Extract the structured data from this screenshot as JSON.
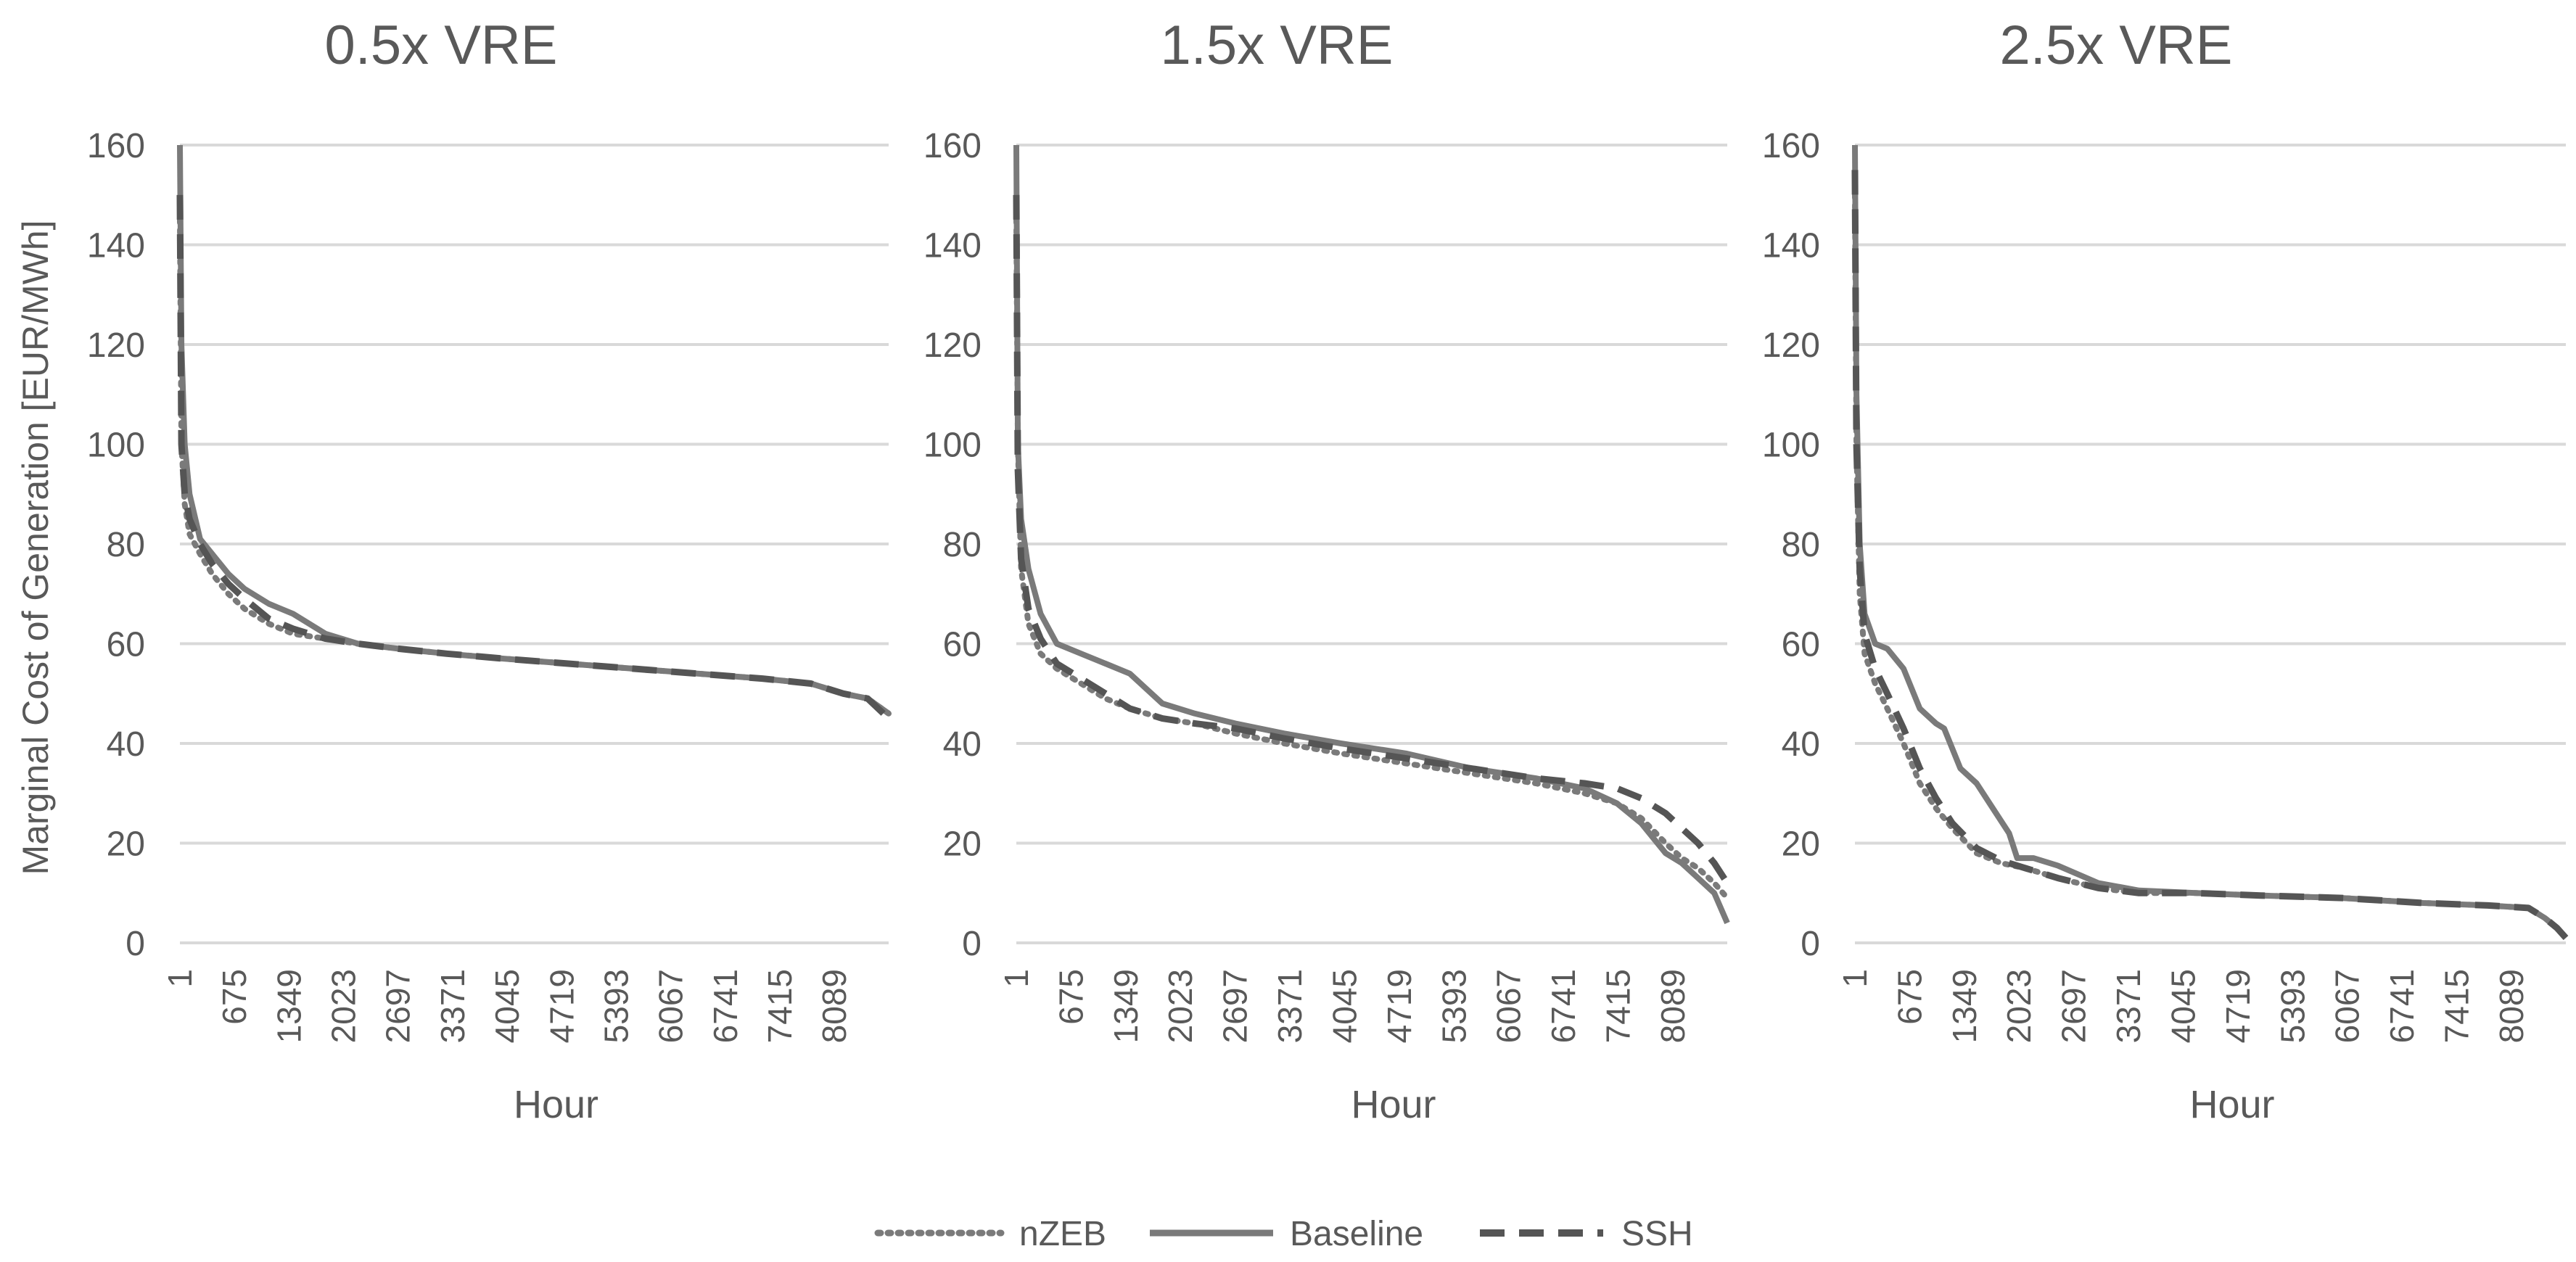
{
  "chart_data": {
    "type": "line",
    "shared": {
      "ylabel": "Marginal Cost of Generation [EUR/MWh]",
      "xlabel": "Hour",
      "ylim": [
        0,
        160
      ],
      "yticks": [
        0,
        20,
        40,
        60,
        80,
        100,
        120,
        140,
        160
      ],
      "xlim": [
        1,
        8760
      ],
      "xticks": [
        1,
        675,
        1349,
        2023,
        2697,
        3371,
        4045,
        4719,
        5393,
        6067,
        6741,
        7415,
        8089
      ],
      "grid": "horizontal",
      "legend_position": "bottom-center",
      "series_styles": {
        "nZEB": {
          "dash": "dotted",
          "color": "#7a7a7a"
        },
        "Baseline": {
          "dash": "solid",
          "color": "#7a7a7a"
        },
        "SSH": {
          "dash": "dashed",
          "color": "#7a7a7a"
        }
      }
    },
    "panels": [
      {
        "title": "0.5x VRE",
        "series": [
          {
            "name": "nZEB",
            "x": [
              1,
              20,
              60,
              120,
              250,
              400,
              600,
              800,
              1100,
              1400,
              1800,
              2200,
              2700,
              3300,
              4000,
              4800,
              5600,
              6400,
              7200,
              7800,
              8200,
              8500,
              8760
            ],
            "y": [
              145,
              100,
              88,
              82,
              78,
              74,
              70,
              67,
              64,
              62,
              61,
              60,
              59,
              58,
              57,
              56,
              55,
              54,
              53,
              52,
              50,
              49,
              46
            ]
          },
          {
            "name": "Baseline",
            "x": [
              1,
              20,
              60,
              120,
              250,
              400,
              600,
              800,
              1100,
              1400,
              1800,
              2200,
              2700,
              3300,
              4000,
              4800,
              5600,
              6400,
              7200,
              7800,
              8200,
              8500,
              8760
            ],
            "y": [
              160,
              120,
              100,
              90,
              81,
              78,
              74,
              71,
              68,
              66,
              62,
              60,
              59,
              58,
              57,
              56,
              55,
              54,
              53,
              52,
              50,
              49,
              46
            ]
          },
          {
            "name": "SSH",
            "x": [
              1,
              20,
              60,
              120,
              250,
              400,
              600,
              800,
              1100,
              1400,
              1800,
              2200,
              2700,
              3300,
              4000,
              4800,
              5600,
              6400,
              7200,
              7800,
              8200,
              8500,
              8760
            ],
            "y": [
              150,
              100,
              90,
              85,
              80,
              76,
              72,
              69,
              65,
              63,
              61,
              60,
              59,
              58,
              57,
              56,
              55,
              54,
              53,
              52,
              50,
              49,
              45
            ]
          }
        ]
      },
      {
        "title": "1.5x VRE",
        "series": [
          {
            "name": "nZEB",
            "x": [
              1,
              20,
              60,
              150,
              300,
              500,
              800,
              1100,
              1400,
              1800,
              2200,
              2700,
              3300,
              4000,
              4800,
              5600,
              6400,
              7000,
              7400,
              7700,
              8000,
              8200,
              8400,
              8600,
              8760
            ],
            "y": [
              145,
              100,
              75,
              64,
              58,
              55,
              52,
              49,
              47,
              45,
              44,
              42,
              40,
              38,
              36,
              34,
              32,
              30,
              28,
              25,
              20,
              17,
              15,
              12,
              9
            ]
          },
          {
            "name": "Baseline",
            "x": [
              1,
              20,
              60,
              150,
              300,
              500,
              800,
              1100,
              1400,
              1600,
              1800,
              2200,
              2700,
              3300,
              4000,
              4800,
              5600,
              6400,
              7000,
              7400,
              7700,
              8000,
              8200,
              8400,
              8600,
              8760
            ],
            "y": [
              160,
              100,
              85,
              75,
              66,
              60,
              58,
              56,
              54,
              51,
              48,
              46,
              44,
              42,
              40,
              38,
              35,
              33,
              31,
              28,
              24,
              18,
              16,
              13,
              10,
              4
            ]
          },
          {
            "name": "SSH",
            "x": [
              1,
              20,
              60,
              150,
              300,
              500,
              800,
              1100,
              1400,
              1800,
              2200,
              2700,
              3300,
              4000,
              4800,
              5600,
              6400,
              7000,
              7400,
              7700,
              8000,
              8200,
              8400,
              8600,
              8760
            ],
            "y": [
              150,
              95,
              77,
              67,
              61,
              56,
              53,
              50,
              47,
              45,
              44,
              43,
              41,
              39,
              37,
              35,
              33,
              32,
              31,
              29,
              26,
              23,
              20,
              16,
              12
            ]
          }
        ]
      },
      {
        "title": "2.5x VRE",
        "series": [
          {
            "name": "nZEB",
            "x": [
              1,
              20,
              60,
              120,
              250,
              400,
              600,
              800,
              1000,
              1200,
              1500,
              1800,
              2100,
              2500,
              3000,
              3500,
              4200,
              5000,
              6000,
              7000,
              7800,
              8300,
              8500,
              8650,
              8760
            ],
            "y": [
              150,
              100,
              70,
              58,
              52,
              47,
              40,
              32,
              27,
              23,
              18,
              16,
              15,
              13,
              11,
              10,
              10,
              9.5,
              9,
              8,
              7.5,
              7,
              5,
              3,
              1
            ]
          },
          {
            "name": "Baseline",
            "x": [
              1,
              20,
              60,
              120,
              250,
              400,
              600,
              800,
              1000,
              1100,
              1300,
              1500,
              1700,
              1900,
              2000,
              2200,
              2500,
              3000,
              3500,
              4200,
              5000,
              6000,
              7000,
              7800,
              8300,
              8500,
              8650,
              8760
            ],
            "y": [
              160,
              110,
              80,
              66,
              60,
              59,
              55,
              47,
              44,
              43,
              35,
              32,
              27,
              22,
              17,
              17,
              15.5,
              12,
              10.5,
              10,
              9.5,
              9,
              8,
              7.5,
              7,
              5,
              3,
              1
            ]
          },
          {
            "name": "SSH",
            "x": [
              1,
              20,
              60,
              120,
              250,
              400,
              600,
              800,
              1000,
              1200,
              1500,
              1800,
              2100,
              2500,
              3000,
              3500,
              4200,
              5000,
              6000,
              7000,
              7800,
              8300,
              8500,
              8650,
              8760
            ],
            "y": [
              155,
              100,
              75,
              62,
              55,
              50,
              43,
              35,
              29,
              24,
              19,
              16.5,
              15,
              13,
              11,
              10,
              10,
              9.5,
              9,
              8,
              7.5,
              7,
              5,
              3,
              1
            ]
          }
        ]
      }
    ]
  }
}
